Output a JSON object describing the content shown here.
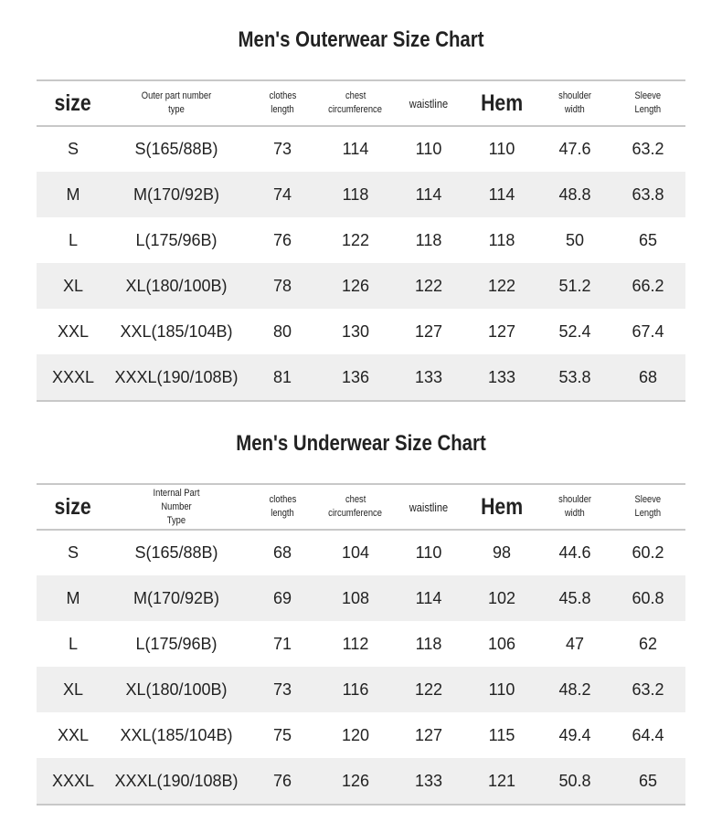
{
  "charts": [
    {
      "title": "Men's Outerwear Size Chart",
      "header": [
        [
          "size"
        ],
        [
          "Outer part number type"
        ],
        [
          "clothes",
          "length"
        ],
        [
          "chest",
          "circumference"
        ],
        [
          "waistline"
        ],
        [
          "Hem"
        ],
        [
          "shoulder",
          "width"
        ],
        [
          "Sleeve",
          "Length"
        ]
      ],
      "rows": [
        [
          "S",
          "S(165/88B)",
          "73",
          "114",
          "110",
          "110",
          "47.6",
          "63.2"
        ],
        [
          "M",
          "M(170/92B)",
          "74",
          "118",
          "114",
          "114",
          "48.8",
          "63.8"
        ],
        [
          "L",
          "L(175/96B)",
          "76",
          "122",
          "118",
          "118",
          "50",
          "65"
        ],
        [
          "XL",
          "XL(180/100B)",
          "78",
          "126",
          "122",
          "122",
          "51.2",
          "66.2"
        ],
        [
          "XXL",
          "XXL(185/104B)",
          "80",
          "130",
          "127",
          "127",
          "52.4",
          "67.4"
        ],
        [
          "XXXL",
          "XXXL(190/108B)",
          "81",
          "136",
          "133",
          "133",
          "53.8",
          "68"
        ]
      ]
    },
    {
      "title": "Men's Underwear Size Chart",
      "header": [
        [
          "size"
        ],
        [
          "Internal Part Number",
          "Type"
        ],
        [
          "clothes",
          "length"
        ],
        [
          "chest",
          "circumference"
        ],
        [
          "waistline"
        ],
        [
          "Hem"
        ],
        [
          "shoulder",
          "width"
        ],
        [
          "Sleeve",
          "Length"
        ]
      ],
      "rows": [
        [
          "S",
          "S(165/88B)",
          "68",
          "104",
          "110",
          "98",
          "44.6",
          "60.2"
        ],
        [
          "M",
          "M(170/92B)",
          "69",
          "108",
          "114",
          "102",
          "45.8",
          "60.8"
        ],
        [
          "L",
          "L(175/96B)",
          "71",
          "112",
          "118",
          "106",
          "47",
          "62"
        ],
        [
          "XL",
          "XL(180/100B)",
          "73",
          "116",
          "122",
          "110",
          "48.2",
          "63.2"
        ],
        [
          "XXL",
          "XXL(185/104B)",
          "75",
          "120",
          "127",
          "115",
          "49.4",
          "64.4"
        ],
        [
          "XXXL",
          "XXXL(190/108B)",
          "76",
          "126",
          "133",
          "121",
          "50.8",
          "65"
        ]
      ]
    }
  ]
}
